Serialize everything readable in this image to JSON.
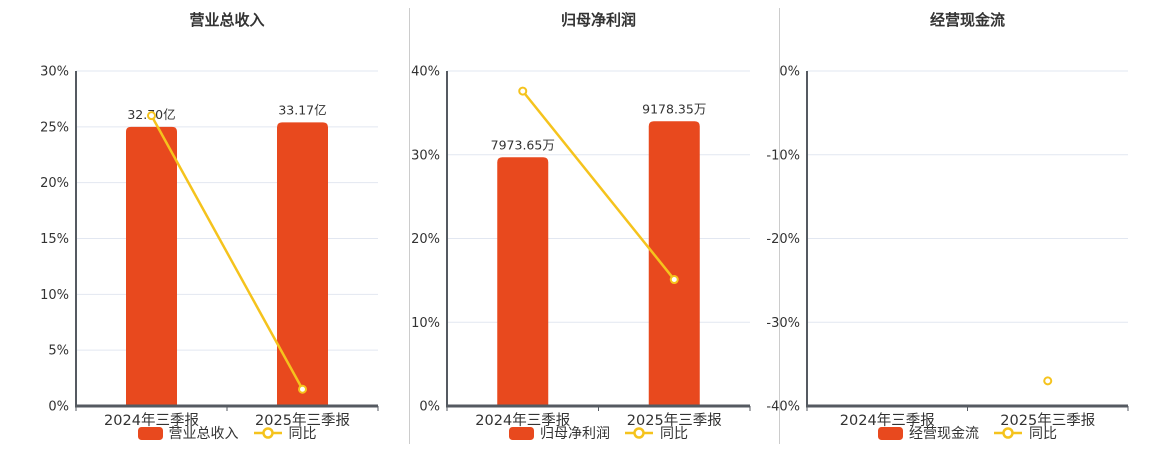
{
  "colors": {
    "bar": "#E8491E",
    "line": "#F5C31D",
    "grid": "#E2E7F1",
    "axis": "#555A61",
    "divider": "#CCCCCC",
    "text": "#333333"
  },
  "chart_data": [
    {
      "type": "bar",
      "title": "营业总收入",
      "categories": [
        "2024年三季报",
        "2025年三季报"
      ],
      "y_axis": {
        "min": 0,
        "max": 30,
        "step": 5,
        "tick_labels": [
          "0%",
          "5%",
          "10%",
          "15%",
          "20%",
          "25%",
          "30%"
        ]
      },
      "series": [
        {
          "name": "营业总收入",
          "type": "bar",
          "values_pct": [
            25.0,
            25.4
          ],
          "data_labels": [
            "32.70亿",
            "33.17亿"
          ]
        },
        {
          "name": "同比",
          "type": "line",
          "values_pct": [
            26.0,
            1.5
          ]
        }
      ],
      "legend_position": "bottom",
      "grid": true
    },
    {
      "type": "bar",
      "title": "归母净利润",
      "categories": [
        "2024年三季报",
        "2025年三季报"
      ],
      "y_axis": {
        "min": 0,
        "max": 40,
        "step": 10,
        "tick_labels": [
          "0%",
          "10%",
          "20%",
          "30%",
          "40%"
        ]
      },
      "series": [
        {
          "name": "归母净利润",
          "type": "bar",
          "values_pct": [
            29.7,
            34.0
          ],
          "data_labels": [
            "7973.65万",
            "9178.35万"
          ]
        },
        {
          "name": "同比",
          "type": "line",
          "values_pct": [
            37.6,
            15.1
          ]
        }
      ],
      "legend_position": "bottom",
      "grid": true
    },
    {
      "type": "bar",
      "title": "经营现金流",
      "categories": [
        "2024年三季报",
        "2025年三季报"
      ],
      "y_axis": {
        "min": -40,
        "max": 0,
        "step": 10,
        "tick_labels": [
          "-40%",
          "-30%",
          "-20%",
          "-10%",
          "0%"
        ]
      },
      "series": [
        {
          "name": "经营现金流",
          "type": "bar",
          "values_pct": [
            null,
            null
          ],
          "data_labels": [
            null,
            null
          ]
        },
        {
          "name": "同比",
          "type": "line",
          "values_pct": [
            null,
            -37.0
          ]
        }
      ],
      "legend_position": "bottom",
      "grid": true
    }
  ]
}
